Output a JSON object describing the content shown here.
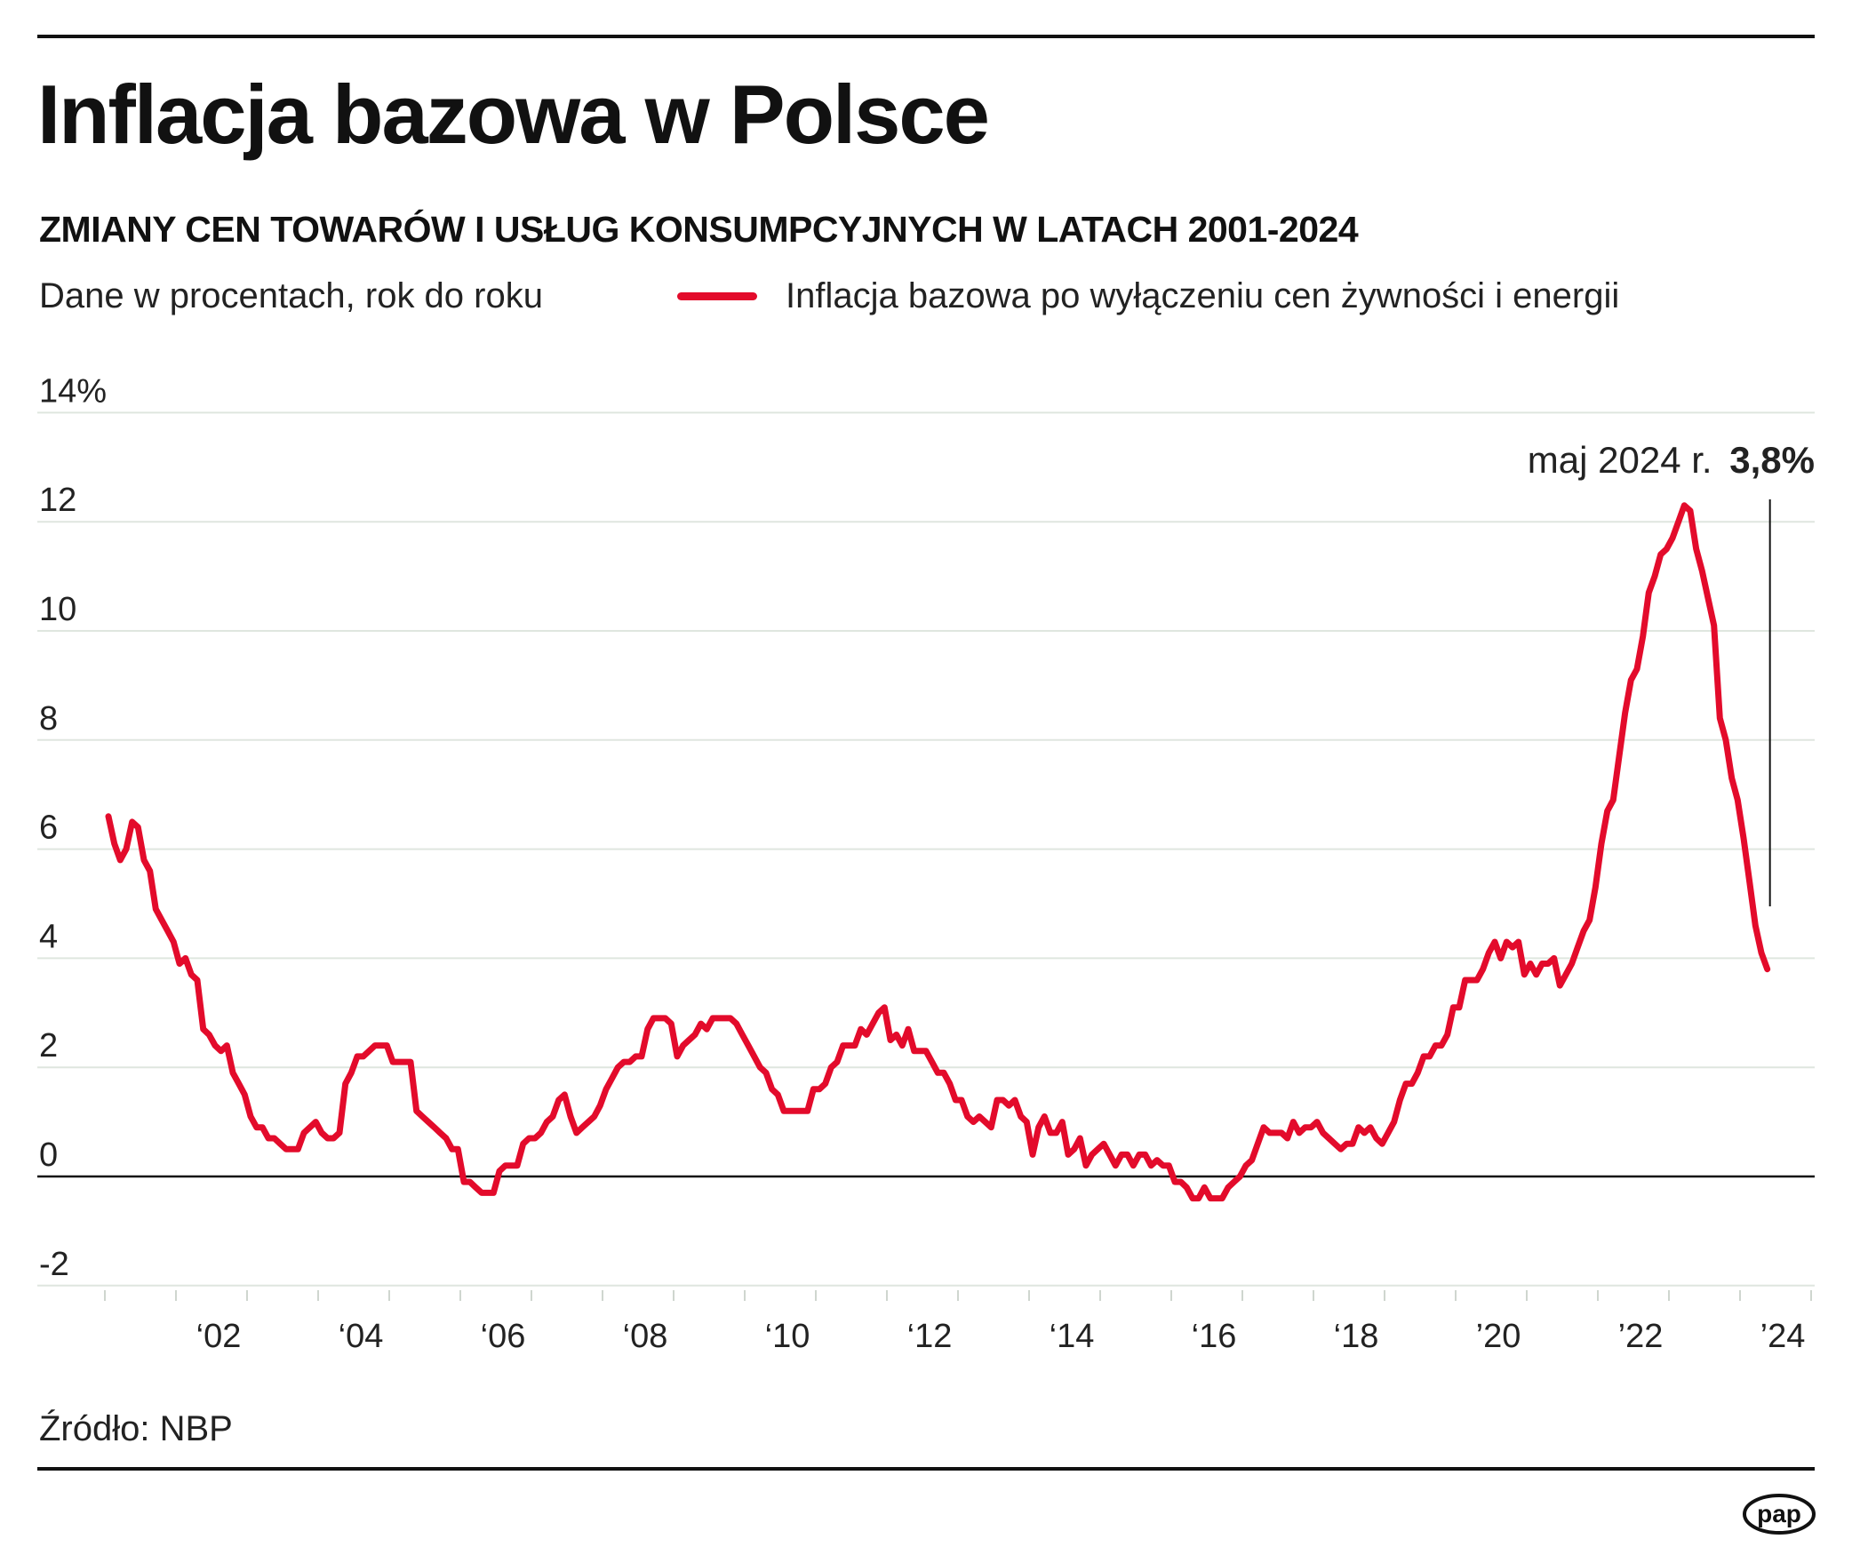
{
  "title": "Inflacja bazowa w Polsce",
  "subtitle": "ZMIANY CEN TOWARÓW I USŁUG KONSUMPCYJNYCH W LATACH 2001-2024",
  "unit_note": "Dane w procentach, rok do roku",
  "source": "Źródło: NBP",
  "logo_text": "pap",
  "colors": {
    "line": "#e30b2b",
    "grid": "#dfe6df",
    "zero_axis": "#111111"
  },
  "chart_data": {
    "type": "line",
    "title": "Inflacja bazowa w Polsce",
    "ylabel": "",
    "xlabel": "",
    "ylim": [
      -2,
      14
    ],
    "y_ticks": [
      14,
      12,
      10,
      8,
      6,
      4,
      2,
      0,
      -2
    ],
    "y_tick_labels": [
      "14%",
      "12",
      "10",
      "8",
      "6",
      "4",
      "2",
      "0",
      "-2"
    ],
    "x_tick_labels": [
      "‘02",
      "‘04",
      "‘06",
      "‘08",
      "‘10",
      "‘12",
      "‘14",
      "‘16",
      "‘18",
      "’20",
      "’22",
      "’24"
    ],
    "x_tick_years": [
      2002,
      2004,
      2006,
      2008,
      2010,
      2012,
      2014,
      2016,
      2018,
      2020,
      2022,
      2024
    ],
    "xlim": [
      "2001-01",
      "2025-01"
    ],
    "grid": true,
    "legend_position": "top",
    "annotation": {
      "label": "maj 2024 r.",
      "value": "3,8%"
    },
    "series": [
      {
        "name": "Inflacja bazowa po wyłączeniu cen żywności i energii",
        "start": "2001-01",
        "frequency": "monthly",
        "values": [
          6.6,
          6.1,
          5.8,
          6.0,
          6.5,
          6.4,
          5.8,
          5.6,
          4.9,
          4.7,
          4.5,
          4.3,
          3.9,
          4.0,
          3.7,
          3.6,
          2.7,
          2.6,
          2.4,
          2.3,
          2.4,
          1.9,
          1.7,
          1.5,
          1.1,
          0.9,
          0.9,
          0.7,
          0.7,
          0.6,
          0.5,
          0.5,
          0.5,
          0.8,
          0.9,
          1.0,
          0.8,
          0.7,
          0.7,
          0.8,
          1.7,
          1.9,
          2.2,
          2.2,
          2.3,
          2.4,
          2.4,
          2.4,
          2.1,
          2.1,
          2.1,
          2.1,
          1.2,
          1.1,
          1.0,
          0.9,
          0.8,
          0.7,
          0.5,
          0.5,
          -0.1,
          -0.1,
          -0.2,
          -0.3,
          -0.3,
          -0.3,
          0.1,
          0.2,
          0.2,
          0.2,
          0.6,
          0.7,
          0.7,
          0.8,
          1.0,
          1.1,
          1.4,
          1.5,
          1.1,
          0.8,
          0.9,
          1.0,
          1.1,
          1.3,
          1.6,
          1.8,
          2.0,
          2.1,
          2.1,
          2.2,
          2.2,
          2.7,
          2.9,
          2.9,
          2.9,
          2.8,
          2.2,
          2.4,
          2.5,
          2.6,
          2.8,
          2.7,
          2.9,
          2.9,
          2.9,
          2.9,
          2.8,
          2.6,
          2.4,
          2.2,
          2.0,
          1.9,
          1.6,
          1.5,
          1.2,
          1.2,
          1.2,
          1.2,
          1.2,
          1.6,
          1.6,
          1.7,
          2.0,
          2.1,
          2.4,
          2.4,
          2.4,
          2.7,
          2.6,
          2.8,
          3.0,
          3.1,
          2.5,
          2.6,
          2.4,
          2.7,
          2.3,
          2.3,
          2.3,
          2.1,
          1.9,
          1.9,
          1.7,
          1.4,
          1.4,
          1.1,
          1.0,
          1.1,
          1.0,
          0.9,
          1.4,
          1.4,
          1.3,
          1.4,
          1.1,
          1.0,
          0.4,
          0.9,
          1.1,
          0.8,
          0.8,
          1.0,
          0.4,
          0.5,
          0.7,
          0.2,
          0.4,
          0.5,
          0.6,
          0.4,
          0.2,
          0.4,
          0.4,
          0.2,
          0.4,
          0.4,
          0.2,
          0.3,
          0.2,
          0.2,
          -0.1,
          -0.1,
          -0.2,
          -0.4,
          -0.4,
          -0.2,
          -0.4,
          -0.4,
          -0.4,
          -0.2,
          -0.1,
          0.0,
          0.2,
          0.3,
          0.6,
          0.9,
          0.8,
          0.8,
          0.8,
          0.7,
          1.0,
          0.8,
          0.9,
          0.9,
          1.0,
          0.8,
          0.7,
          0.6,
          0.5,
          0.6,
          0.6,
          0.9,
          0.8,
          0.9,
          0.7,
          0.6,
          0.8,
          1.0,
          1.4,
          1.7,
          1.7,
          1.9,
          2.2,
          2.2,
          2.4,
          2.4,
          2.6,
          3.1,
          3.1,
          3.6,
          3.6,
          3.6,
          3.8,
          4.1,
          4.3,
          4.0,
          4.3,
          4.2,
          4.3,
          3.7,
          3.9,
          3.7,
          3.9,
          3.9,
          4.0,
          3.5,
          3.7,
          3.9,
          4.2,
          4.5,
          4.7,
          5.3,
          6.1,
          6.7,
          6.9,
          7.7,
          8.5,
          9.1,
          9.3,
          9.9,
          10.7,
          11.0,
          11.4,
          11.5,
          11.7,
          12.0,
          12.3,
          12.2,
          11.5,
          11.1,
          10.6,
          10.1,
          8.4,
          8.0,
          7.3,
          6.9,
          6.2,
          5.4,
          4.6,
          4.1,
          3.8
        ]
      }
    ]
  }
}
